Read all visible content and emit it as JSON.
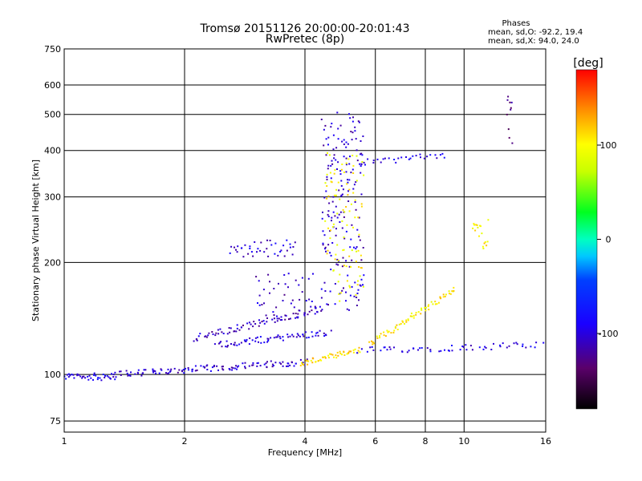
{
  "chart_data": {
    "type": "scatter",
    "title": "Tromsø 20151126 20:00:00-20:01:43",
    "subtitle": "RwPretec (8p)",
    "xlabel": "Frequency [MHz]",
    "ylabel": "Stationary phase Virtual Height [km]",
    "x_scale": "log",
    "y_scale": "log",
    "xlim": [
      1,
      16
    ],
    "ylim": [
      70,
      750
    ],
    "x_ticks": [
      1,
      2,
      4,
      6,
      8,
      10,
      16
    ],
    "x_tick_labels": [
      "1",
      "2",
      "4",
      "6",
      "8",
      "10",
      "16"
    ],
    "y_ticks": [
      75,
      100,
      200,
      300,
      400,
      500,
      600,
      750
    ],
    "y_tick_labels": [
      "75",
      "100",
      "200",
      "300",
      "400",
      "500",
      "600",
      "750"
    ],
    "grid": true,
    "phases_info": {
      "title": "Phases",
      "line_o": "mean, sd,O:  -92.2, 19.4",
      "line_x": "mean, sd,X:  94.0, 24.0"
    },
    "colorbar": {
      "label": "[deg]",
      "min": -180,
      "max": 180,
      "tick_values": [
        100,
        0,
        -100
      ],
      "tick_labels": [
        "100",
        "0",
        "-100"
      ]
    },
    "traces": [
      {
        "x_start": 1.0,
        "x_end": 1.35,
        "h_start": 98,
        "h_end": 99,
        "phase": -95,
        "n": 40
      },
      {
        "x_start": 1.35,
        "x_end": 4.0,
        "h_start": 100,
        "h_end": 108,
        "phase": -105,
        "n": 120
      },
      {
        "x_start": 3.9,
        "x_end": 5.5,
        "h_start": 107,
        "h_end": 116,
        "phase": 110,
        "n": 50
      },
      {
        "x_start": 5.5,
        "x_end": 15.5,
        "h_start": 116,
        "h_end": 120,
        "phase": -95,
        "n": 60
      },
      {
        "x_start": 2.4,
        "x_end": 4.6,
        "h_start": 120,
        "h_end": 130,
        "phase": -100,
        "n": 70
      },
      {
        "x_start": 2.1,
        "x_end": 4.4,
        "h_start": 125,
        "h_end": 150,
        "phase": -110,
        "n": 80
      },
      {
        "x_start": 3.0,
        "x_end": 4.3,
        "h_start": 140,
        "h_end": 190,
        "phase": -108,
        "n": 45
      },
      {
        "x_start": 2.6,
        "x_end": 3.8,
        "h_start": 208,
        "h_end": 228,
        "phase": -100,
        "n": 40
      },
      {
        "x_start": 4.4,
        "x_end": 5.6,
        "h_start": 150,
        "h_end": 500,
        "phase": -105,
        "n": 180
      },
      {
        "x_start": 4.5,
        "x_end": 5.6,
        "h_start": 150,
        "h_end": 400,
        "phase": 100,
        "n": 90
      },
      {
        "x_start": 5.8,
        "x_end": 9.5,
        "h_start": 120,
        "h_end": 170,
        "phase": 105,
        "n": 70
      },
      {
        "x_start": 5.5,
        "x_end": 9.0,
        "h_start": 370,
        "h_end": 390,
        "phase": -95,
        "n": 30
      },
      {
        "x_start": 10.5,
        "x_end": 11.5,
        "h_start": 215,
        "h_end": 260,
        "phase": 105,
        "n": 18
      },
      {
        "x_start": 12.8,
        "x_end": 13.2,
        "h_start": 420,
        "h_end": 560,
        "phase": -130,
        "n": 10
      }
    ]
  }
}
